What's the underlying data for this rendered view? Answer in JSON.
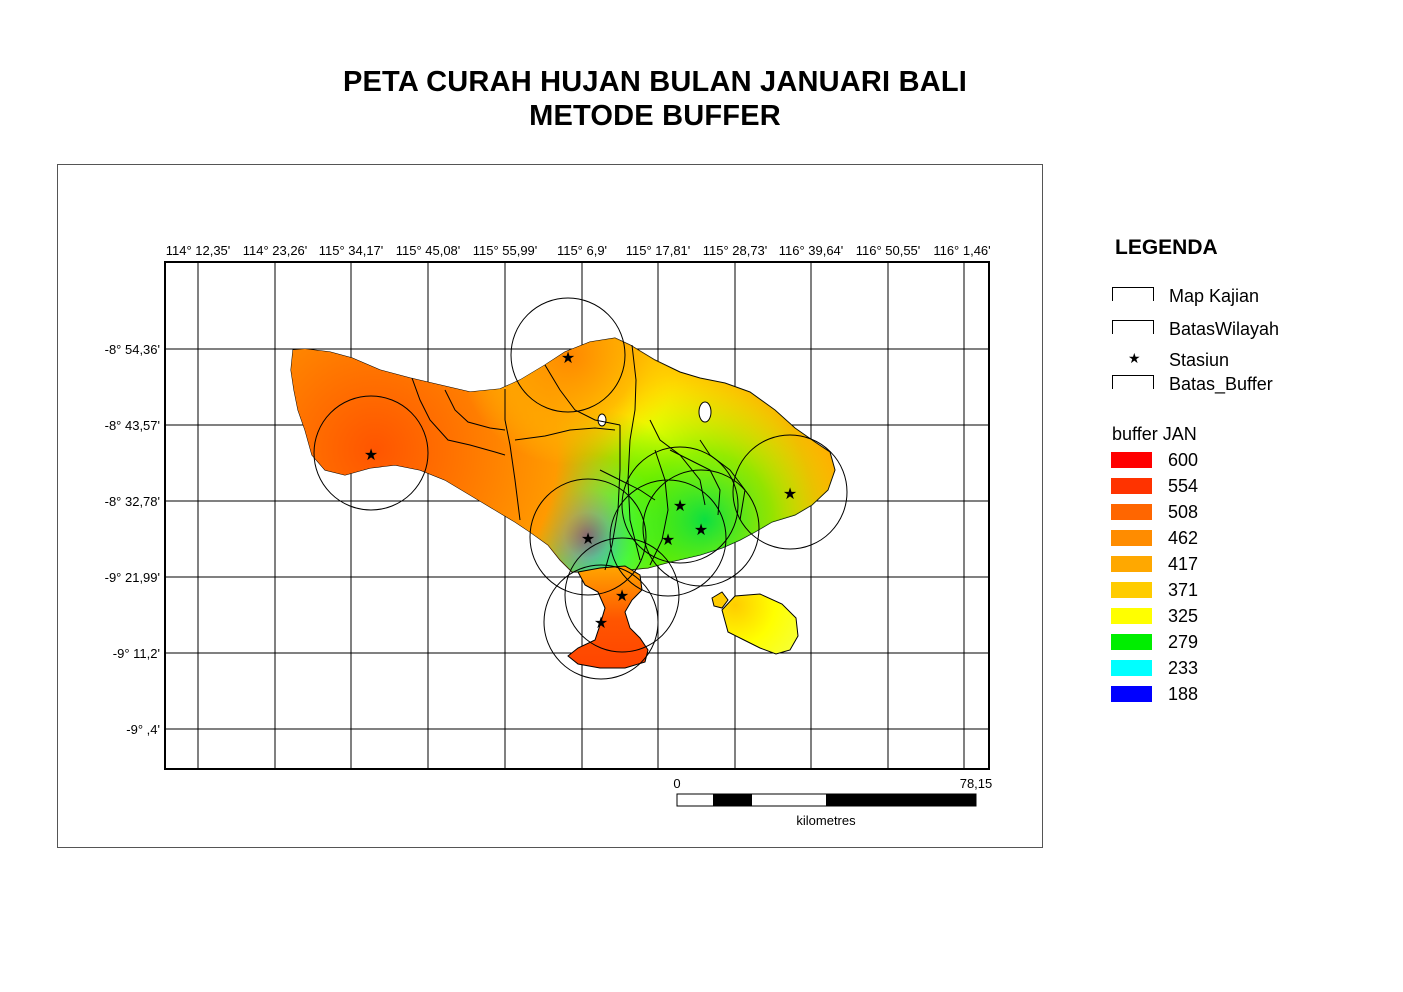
{
  "title": {
    "line1": "PETA CURAH HUJAN BULAN JANUARI BALI",
    "line2": "METODE BUFFER"
  },
  "map": {
    "lon_labels": [
      "114° 12,35'",
      "114° 23,26'",
      "115° 34,17'",
      "115° 45,08'",
      "115° 55,99'",
      "115° 6,9'",
      "115° 17,81'",
      "115° 28,73'",
      "116° 39,64'",
      "116° 50,55'",
      "116° 1,46'"
    ],
    "lat_labels": [
      "-8° 54,36'",
      "-8° 43,57'",
      "-8° 32,78'",
      "-9° 21,99'",
      "-9° 11,2'",
      "-9° ,4'"
    ]
  },
  "scalebar": {
    "start": "0",
    "end": "78,15",
    "unit": "kilometres"
  },
  "legend": {
    "title": "LEGENDA",
    "items": {
      "map_kajian": "Map Kajian",
      "batas_wilayah": "BatasWilayah",
      "stasiun": "Stasiun",
      "batas_buffer": "Batas_Buffer"
    },
    "ramp_title": "buffer JAN",
    "ramp": [
      {
        "value": "600",
        "color": "#ff0000"
      },
      {
        "value": "554",
        "color": "#ff3300"
      },
      {
        "value": "508",
        "color": "#ff6600"
      },
      {
        "value": "462",
        "color": "#ff8c00"
      },
      {
        "value": "417",
        "color": "#ffa800"
      },
      {
        "value": "371",
        "color": "#ffcc00"
      },
      {
        "value": "325",
        "color": "#ffff00"
      },
      {
        "value": "279",
        "color": "#00ee00"
      },
      {
        "value": "233",
        "color": "#00ffff"
      },
      {
        "value": "188",
        "color": "#0000ff"
      }
    ]
  }
}
